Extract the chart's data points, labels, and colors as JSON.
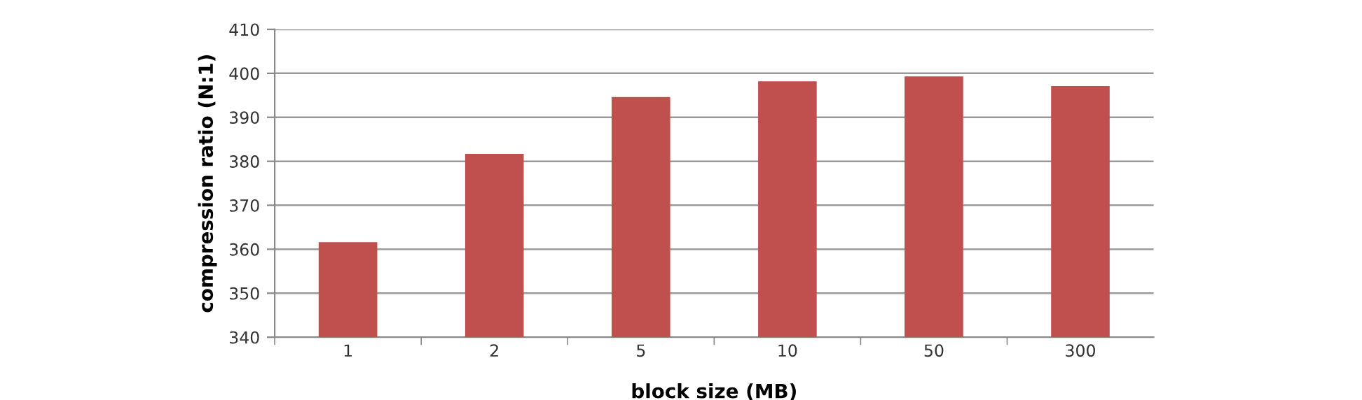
{
  "chart_data": {
    "type": "bar",
    "xlabel": "block size (MB)",
    "ylabel": "compression ratio (N:1)",
    "categories": [
      "1",
      "2",
      "5",
      "10",
      "50",
      "300"
    ],
    "values": [
      361.6,
      381.7,
      394.6,
      398.2,
      399.3,
      397.1
    ],
    "color": "#c0504d",
    "ylim": [
      340,
      410
    ],
    "yticks": [
      340,
      350,
      360,
      370,
      380,
      390,
      400,
      410
    ],
    "grid": "y",
    "legend": false
  }
}
